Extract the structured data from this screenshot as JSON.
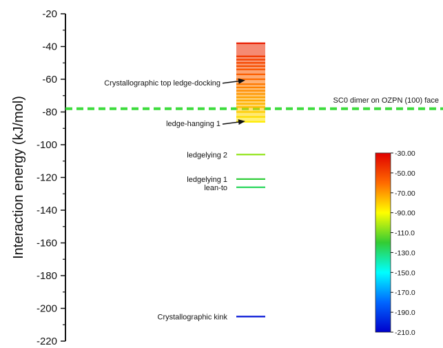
{
  "chart_data": {
    "type": "scatter",
    "ylabel": "Interaction energy (kJ/mol)",
    "ylim": [
      -220,
      -20
    ],
    "y_ticks": [
      -20,
      -40,
      -60,
      -80,
      -100,
      -120,
      -140,
      -160,
      -180,
      -200,
      -220
    ],
    "x_axis_visible": false,
    "grid": false,
    "levels": [
      -38,
      -46,
      -48,
      -50,
      -52,
      -54,
      -57,
      -60,
      -63,
      -65,
      -67,
      -69,
      -71,
      -73,
      -75,
      -77,
      -80,
      -83,
      -86,
      -106,
      -121,
      -126,
      -205
    ],
    "reference_line": {
      "value": -78,
      "label": "SC0 dimer on OZPN (100) face",
      "color": "#3ddc3d",
      "style": "dashed"
    },
    "annotations": [
      {
        "text": "Crystallographic top ledge-docking",
        "y": -62,
        "arrow": true
      },
      {
        "text": "ledge-hanging 1",
        "y": -87,
        "arrow": true
      },
      {
        "text": "ledgelying 2",
        "y": -106,
        "arrow": false
      },
      {
        "text": "ledgelying 1",
        "y": -121,
        "arrow": false
      },
      {
        "text": "lean-to",
        "y": -126,
        "arrow": false
      },
      {
        "text": "Crystallographic kink",
        "y": -205,
        "arrow": false
      }
    ],
    "colorbar": {
      "range": [
        -210,
        -30
      ],
      "tick_labels": [
        "-30.00",
        "-50.00",
        "-70.00",
        "-90.00",
        "-110.0",
        "-130.0",
        "-150.0",
        "-170.0",
        "-190.0",
        "-210.0"
      ],
      "colors": [
        "#e00000",
        "#ff6a00",
        "#ffff00",
        "#33cc33",
        "#00ffff",
        "#0066ff",
        "#0000cc"
      ]
    }
  }
}
